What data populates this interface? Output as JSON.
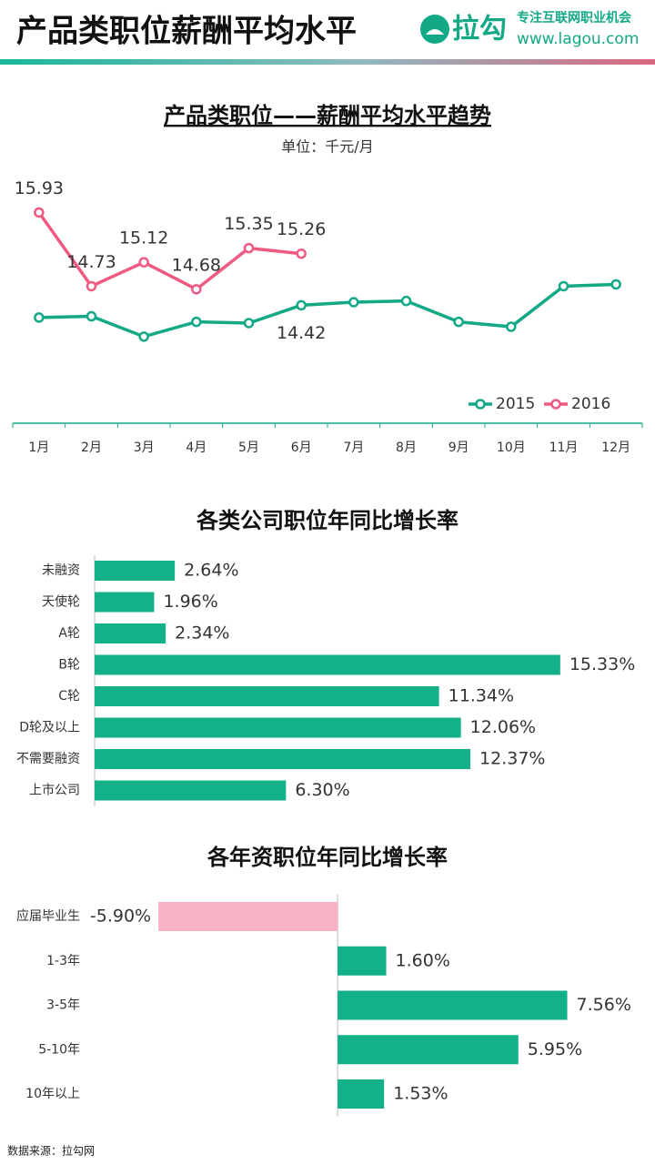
{
  "header": {
    "title": "产品类职位薪酬平均水平",
    "logo": "拉勾",
    "slogan": "专注互联网职业机会",
    "url": "www.lagou.com"
  },
  "chart_data": [
    {
      "type": "line",
      "title": "产品类职位——薪酬平均水平趋势",
      "subtitle": "单位：千元/月",
      "categories": [
        "1月",
        "2月",
        "3月",
        "4月",
        "5月",
        "6月",
        "7月",
        "8月",
        "9月",
        "10月",
        "11月",
        "12月"
      ],
      "ylim": [
        12.5,
        16.5
      ],
      "legend": "bottom-right",
      "series": [
        {
          "name": "2015",
          "color": "#13a886",
          "values": [
            14.22,
            14.24,
            13.91,
            14.15,
            14.13,
            14.42,
            14.47,
            14.49,
            14.15,
            14.07,
            14.73,
            14.76
          ],
          "value_labels": [
            null,
            null,
            null,
            null,
            null,
            "14.42",
            null,
            null,
            null,
            null,
            null,
            null
          ]
        },
        {
          "name": "2016",
          "color": "#ee5a80",
          "values": [
            15.93,
            14.73,
            15.12,
            14.68,
            15.35,
            15.26,
            null,
            null,
            null,
            null,
            null,
            null
          ]
        }
      ]
    },
    {
      "type": "hbar",
      "title": "各类公司职位年同比增长率",
      "categories": [
        "未融资",
        "天使轮",
        "A轮",
        "B轮",
        "C轮",
        "D轮及以上",
        "不需要融资",
        "上市公司"
      ],
      "values": [
        2.64,
        1.96,
        2.34,
        15.33,
        11.34,
        12.06,
        12.37,
        6.3
      ],
      "value_labels": [
        "2.64%",
        "1.96%",
        "2.34%",
        "15.33%",
        "11.34%",
        "12.06%",
        "12.37%",
        "6.30%"
      ],
      "color": "#13b08a",
      "xlim": [
        0,
        18
      ]
    },
    {
      "type": "hbar",
      "title": "各年资职位年同比增长率",
      "categories": [
        "应届毕业生",
        "1-3年",
        "3-5年",
        "5-10年",
        "10年以上"
      ],
      "values": [
        -5.9,
        1.6,
        7.56,
        5.95,
        1.53
      ],
      "value_labels": [
        "-5.90%",
        "1.60%",
        "7.56%",
        "5.95%",
        "1.53%"
      ],
      "color": "#13b08a",
      "negative_color": "#f9b3c5",
      "xlim": [
        -8,
        10
      ]
    }
  ],
  "footer": {
    "source": "数据来源：拉勾网"
  }
}
